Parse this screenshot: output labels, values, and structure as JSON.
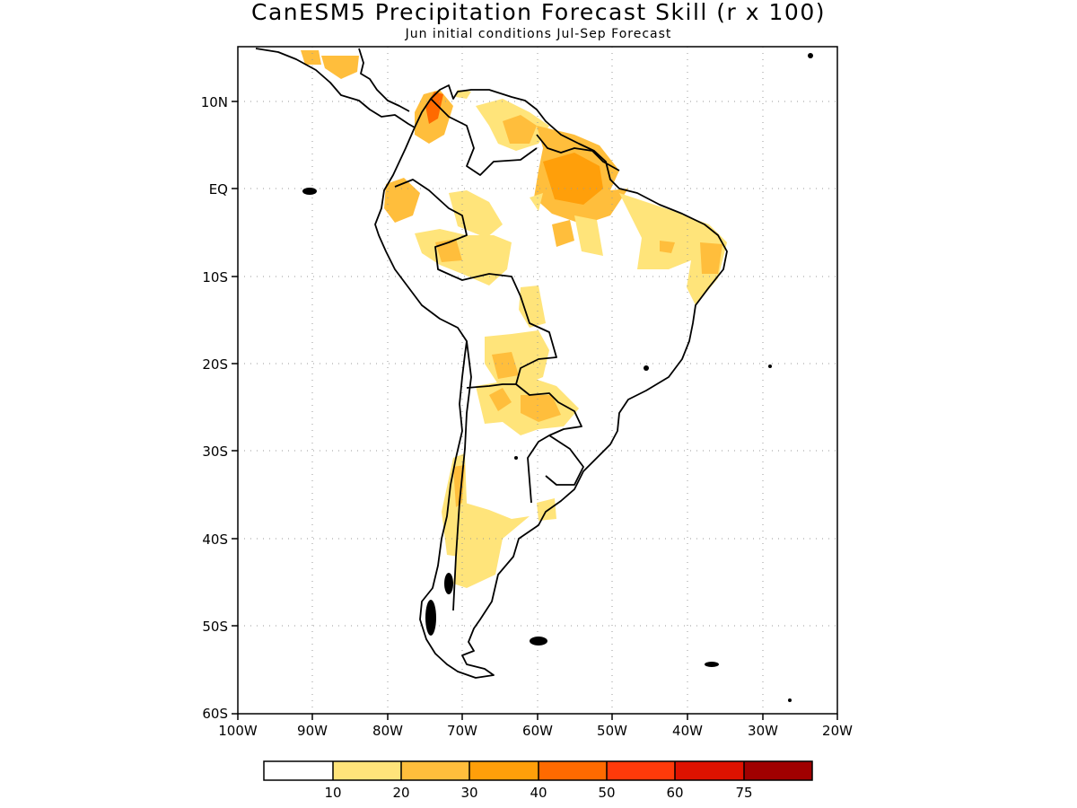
{
  "title": "CanESM5 Precipitation Forecast Skill (r x 100)",
  "subtitle": "Jun initial conditions   Jul-Sep Forecast",
  "map": {
    "region": "South America",
    "lon_range": [
      -100,
      -20
    ],
    "lat_range": [
      -60,
      15
    ],
    "lat_ticks": [
      "10N",
      "EQ",
      "10S",
      "20S",
      "30S",
      "40S",
      "50S",
      "60S"
    ],
    "lon_ticks": [
      "100W",
      "90W",
      "80W",
      "70W",
      "60W",
      "50W",
      "40W",
      "30W",
      "20W"
    ],
    "grid": "dotted"
  },
  "colorbar": {
    "colors": [
      "#ffffff",
      "#ffe47a",
      "#ffbe3c",
      "#ff9f0a",
      "#ff6a00",
      "#ff3a0a",
      "#de1200",
      "#a00000"
    ],
    "labels": [
      "10",
      "20",
      "30",
      "40",
      "50",
      "60",
      "75"
    ]
  }
}
